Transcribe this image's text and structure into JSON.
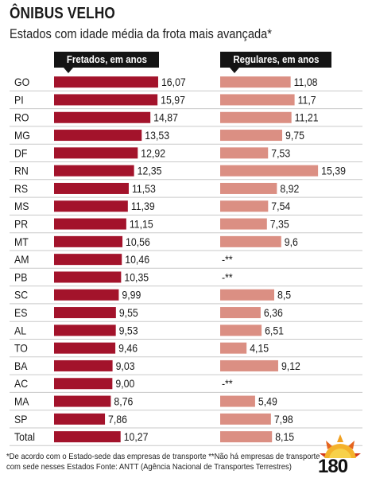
{
  "title": "ÔNIBUS VELHO",
  "subtitle": "Estados com idade média da frota mais avançada*",
  "colors": {
    "fretados": "#a3132b",
    "regulares": "#db8f83",
    "rule": "#c9c9c9",
    "header_bg": "#141414"
  },
  "footnote": {
    "line1": "*De acordo com o Estado-sede das empresas de transporte   **Não há empresas de transporte",
    "line2": "com sede nesses Estados      Fonte: ANTT (Agência Nacional de Transportes Terrestres)"
  },
  "logo": {
    "text": "180",
    "icon": "sun-logo-icon"
  },
  "chart_data": {
    "type": "bar",
    "categories": [
      "GO",
      "PI",
      "RO",
      "MG",
      "DF",
      "RN",
      "RS",
      "MS",
      "PR",
      "MT",
      "AM",
      "PB",
      "SC",
      "ES",
      "AL",
      "TO",
      "BA",
      "AC",
      "MA",
      "SP",
      "Total"
    ],
    "series": [
      {
        "name": "Fretados, em anos",
        "values": [
          16.07,
          15.97,
          14.87,
          13.53,
          12.92,
          12.35,
          11.53,
          11.39,
          11.15,
          10.56,
          10.46,
          10.35,
          9.99,
          9.55,
          9.53,
          9.46,
          9.03,
          9.0,
          8.76,
          7.86,
          10.27
        ],
        "labels": [
          "16,07",
          "15,97",
          "14,87",
          "13,53",
          "12,92",
          "12,35",
          "11,53",
          "11,39",
          "11,15",
          "10,56",
          "10,46",
          "10,35",
          "9,99",
          "9,55",
          "9,53",
          "9,46",
          "9,03",
          "9,00",
          "8,76",
          "7,86",
          "10,27"
        ]
      },
      {
        "name": "Regulares, em anos",
        "values": [
          11.08,
          11.7,
          11.21,
          9.75,
          7.53,
          15.39,
          8.92,
          7.54,
          7.35,
          9.6,
          null,
          null,
          8.5,
          6.36,
          6.51,
          4.15,
          9.12,
          null,
          5.49,
          7.98,
          8.15
        ],
        "labels": [
          "11,08",
          "11,7",
          "11,21",
          "9,75",
          "7,53",
          "15,39",
          "8,92",
          "7,54",
          "7,35",
          "9,6",
          "-**",
          "-**",
          "8,5",
          "6,36",
          "6,51",
          "4,15",
          "9,12",
          "-**",
          "5,49",
          "7,98",
          "8,15"
        ]
      }
    ]
  }
}
